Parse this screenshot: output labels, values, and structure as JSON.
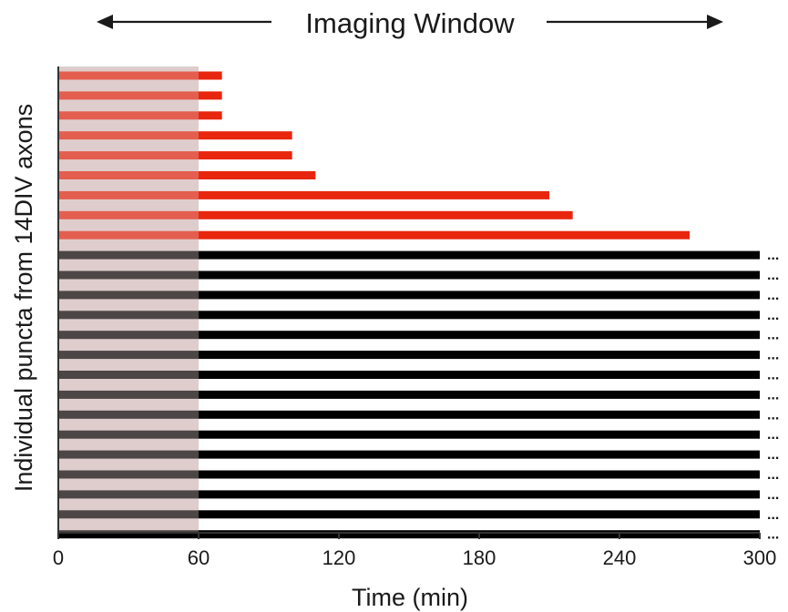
{
  "chart_data": {
    "type": "bar",
    "orientation": "horizontal",
    "title": "Imaging Window",
    "xlabel": "Time (min)",
    "ylabel": "Individual puncta from 14DIV axons",
    "xlim": [
      0,
      300
    ],
    "xticks": [
      0,
      60,
      120,
      180,
      240,
      300
    ],
    "shaded_region": [
      0,
      60
    ],
    "continuation_marker": "...",
    "series": [
      {
        "color": "#e8260e",
        "values": [
          70,
          70,
          70,
          100,
          100,
          110,
          210,
          220,
          270
        ]
      },
      {
        "color": "#000000",
        "values": [
          300,
          300,
          300,
          300,
          300,
          300,
          300,
          300,
          300,
          300,
          300,
          300,
          300,
          300,
          300
        ],
        "continues_beyond_window": true
      }
    ],
    "colors": {
      "shade": "#dcc8c8",
      "axis": "#333333"
    },
    "grid": false
  }
}
